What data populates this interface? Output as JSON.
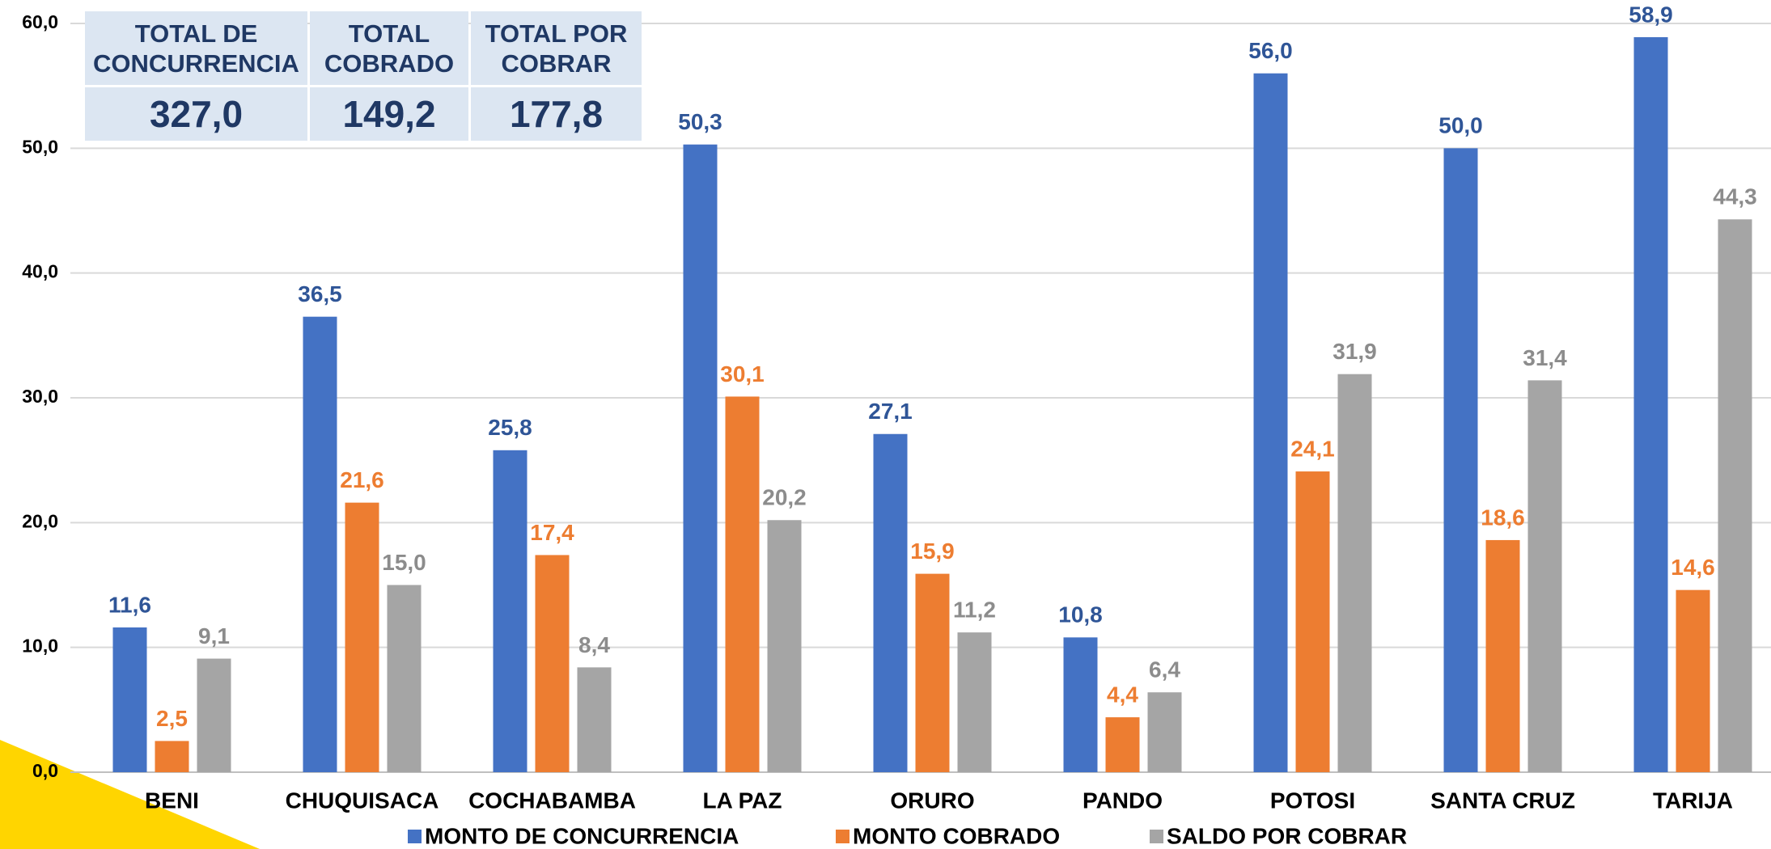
{
  "chart_data": {
    "type": "bar",
    "categories": [
      "BENI",
      "CHUQUISACA",
      "COCHABAMBA",
      "LA PAZ",
      "ORURO",
      "PANDO",
      "POTOSI",
      "SANTA CRUZ",
      "TARIJA"
    ],
    "series": [
      {
        "name": "MONTO DE CONCURRENCIA",
        "color": "#4472c4",
        "label_color": "#2f5597",
        "values": [
          11.6,
          36.5,
          25.8,
          50.3,
          27.1,
          10.8,
          56.0,
          50.0,
          58.9
        ],
        "value_labels": [
          "11,6",
          "36,5",
          "25,8",
          "50,3",
          "27,1",
          "10,8",
          "56,0",
          "50,0",
          "58,9"
        ]
      },
      {
        "name": "MONTO COBRADO",
        "color": "#ed7d31",
        "label_color": "#ed7d31",
        "values": [
          2.5,
          21.6,
          17.4,
          30.1,
          15.9,
          4.4,
          24.1,
          18.6,
          14.6
        ],
        "value_labels": [
          "2,5",
          "21,6",
          "17,4",
          "30,1",
          "15,9",
          "4,4",
          "24,1",
          "18,6",
          "14,6"
        ]
      },
      {
        "name": "SALDO POR COBRAR",
        "color": "#a5a5a5",
        "label_color": "#8c8c8c",
        "values": [
          9.1,
          15.0,
          8.4,
          20.2,
          11.2,
          6.4,
          31.9,
          31.4,
          44.3
        ],
        "value_labels": [
          "9,1",
          "15,0",
          "8,4",
          "20,2",
          "11,2",
          "6,4",
          "31,9",
          "31,4",
          "44,3"
        ]
      }
    ],
    "ylim": [
      0,
      60
    ],
    "yticks": [
      {
        "value": 0,
        "label": "0,0"
      },
      {
        "value": 10,
        "label": "10,0"
      },
      {
        "value": 20,
        "label": "20,0"
      },
      {
        "value": 30,
        "label": "30,0"
      },
      {
        "value": 40,
        "label": "40,0"
      },
      {
        "value": 50,
        "label": "50,0"
      },
      {
        "value": 60,
        "label": "60,0"
      }
    ],
    "grid": true,
    "legend": "bottom"
  },
  "summary": {
    "headers": [
      "TOTAL DE CONCURRENCIA",
      "TOTAL COBRADO",
      "TOTAL POR COBRAR"
    ],
    "values": [
      "327,0",
      "149,2",
      "177,8"
    ]
  }
}
